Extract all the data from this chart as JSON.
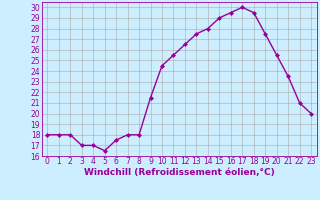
{
  "x": [
    0,
    1,
    2,
    3,
    4,
    5,
    6,
    7,
    8,
    9,
    10,
    11,
    12,
    13,
    14,
    15,
    16,
    17,
    18,
    19,
    20,
    21,
    22,
    23
  ],
  "y": [
    18,
    18,
    18,
    17,
    17,
    16.5,
    17.5,
    18,
    18,
    21.5,
    24.5,
    25.5,
    26.5,
    27.5,
    28,
    29,
    29.5,
    30,
    29.5,
    27.5,
    25.5,
    23.5,
    21,
    20
  ],
  "line_color": "#990099",
  "marker": "D",
  "marker_size": 2.0,
  "bg_color": "#cceeff",
  "grid_color": "#aaaaaa",
  "xlabel": "Windchill (Refroidissement éolien,°C)",
  "ylim": [
    16,
    30.5
  ],
  "yticks": [
    16,
    17,
    18,
    19,
    20,
    21,
    22,
    23,
    24,
    25,
    26,
    27,
    28,
    29,
    30
  ],
  "xticks": [
    0,
    1,
    2,
    3,
    4,
    5,
    6,
    7,
    8,
    9,
    10,
    11,
    12,
    13,
    14,
    15,
    16,
    17,
    18,
    19,
    20,
    21,
    22,
    23
  ],
  "xlabel_fontsize": 6.5,
  "tick_fontsize": 5.5,
  "line_width": 1.0
}
